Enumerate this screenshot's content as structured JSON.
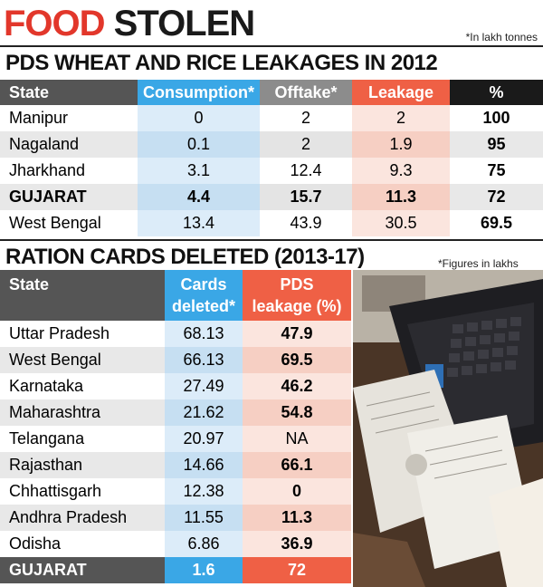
{
  "header": {
    "title_word1": "FOOD",
    "title_word2": "STOLEN",
    "note": "*In lakh tonnes"
  },
  "table1": {
    "title": "PDS WHEAT AND RICE LEAKAGES IN 2012",
    "columns": [
      "State",
      "Consumption*",
      "Offtake*",
      "Leakage",
      "%"
    ],
    "rows": [
      {
        "state": "Manipur",
        "consumption": "0",
        "offtake": "2",
        "leakage": "2",
        "pct": "100"
      },
      {
        "state": "Nagaland",
        "consumption": "0.1",
        "offtake": "2",
        "leakage": "1.9",
        "pct": "95"
      },
      {
        "state": "Jharkhand",
        "consumption": "3.1",
        "offtake": "12.4",
        "leakage": "9.3",
        "pct": "75"
      },
      {
        "state": "GUJARAT",
        "consumption": "4.4",
        "offtake": "15.7",
        "leakage": "11.3",
        "pct": "72"
      },
      {
        "state": "West Bengal",
        "consumption": "13.4",
        "offtake": "43.9",
        "leakage": "30.5",
        "pct": "69.5"
      }
    ]
  },
  "table2": {
    "title": "RATION CARDS DELETED (2013-17)",
    "note": "*Figures in  lakhs",
    "columns": {
      "state": "State",
      "cards_line1": "Cards",
      "cards_line2": "deleted*",
      "pds_line1": "PDS",
      "pds_line2": "leakage (%)"
    },
    "rows": [
      {
        "state": "Uttar Pradesh",
        "cards": "68.13",
        "pds": "47.9"
      },
      {
        "state": "West Bengal",
        "cards": "66.13",
        "pds": "69.5"
      },
      {
        "state": "Karnataka",
        "cards": "27.49",
        "pds": "46.2"
      },
      {
        "state": "Maharashtra",
        "cards": "21.62",
        "pds": "54.8"
      },
      {
        "state": "Telangana",
        "cards": "20.97",
        "pds": "NA"
      },
      {
        "state": "Rajasthan",
        "cards": "14.66",
        "pds": "66.1"
      },
      {
        "state": "Chhattisgarh",
        "cards": "12.38",
        "pds": "0"
      },
      {
        "state": "Andhra Pradesh",
        "cards": "11.55",
        "pds": "11.3"
      },
      {
        "state": "Odisha",
        "cards": "6.86",
        "pds": "36.9"
      }
    ],
    "footer": {
      "state": "GUJARAT",
      "cards": "1.6",
      "pds": "72"
    }
  },
  "colors": {
    "accent_red": "#e2372b",
    "blue": "#3aa7e6",
    "orange": "#ef6045",
    "grey": "#8c8c8c",
    "dark": "#1a1a1a"
  }
}
